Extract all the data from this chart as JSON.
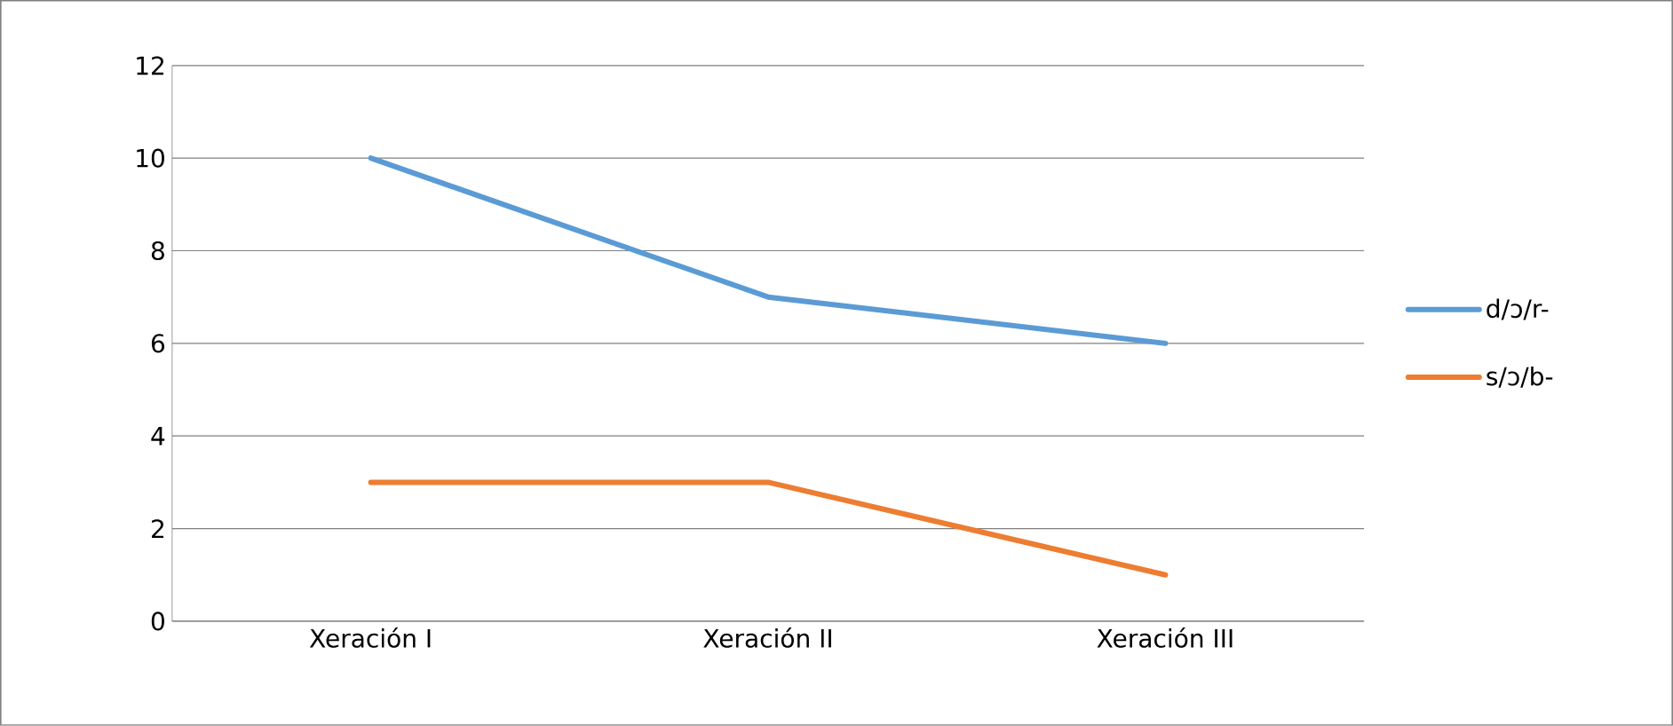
{
  "chart_data": {
    "type": "line",
    "categories": [
      "Xeración I",
      "Xeración II",
      "Xeración III"
    ],
    "series": [
      {
        "name": "d/ɔ/r-",
        "color": "#5b9bd5",
        "values": [
          10,
          7,
          6
        ]
      },
      {
        "name": "s/ɔ/b-",
        "color": "#ed7d31",
        "values": [
          3,
          3,
          1
        ]
      }
    ],
    "ylim": [
      0,
      12
    ],
    "yticks": [
      0,
      2,
      4,
      6,
      8,
      10,
      12
    ],
    "grid": "y",
    "legend": "right",
    "marker": "none",
    "line_style": "solid"
  }
}
